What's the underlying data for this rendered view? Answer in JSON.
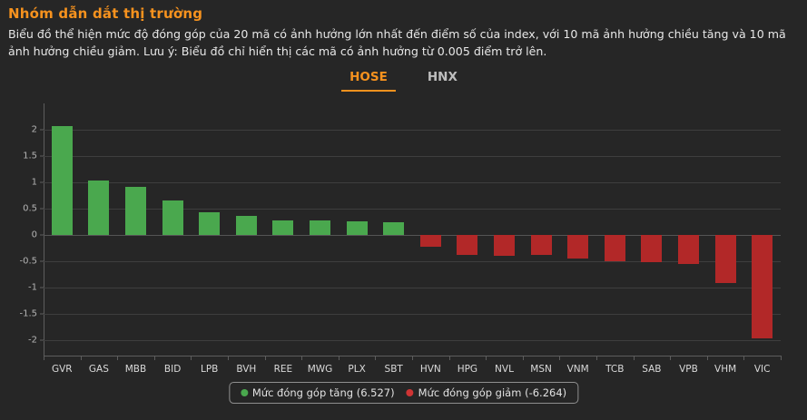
{
  "header": {
    "title": "Nhóm dẫn dắt thị trường",
    "description": "Biểu đồ thể hiện mức độ đóng góp của 20 mã có ảnh hưởng lớn nhất đến điểm số của index, với 10 mã ảnh hưởng chiều tăng và 10 mã ảnh hưởng chiều giảm. Lưu ý: Biểu đồ chỉ hiển thị các mã có ảnh hưởng từ 0.005 điểm trở lên."
  },
  "tabs": [
    {
      "label": "HOSE",
      "active": true
    },
    {
      "label": "HNX",
      "active": false
    }
  ],
  "chart_data": {
    "type": "bar",
    "title": "",
    "xlabel": "",
    "ylabel": "",
    "categories": [
      "GVR",
      "GAS",
      "MBB",
      "BID",
      "LPB",
      "BVH",
      "REE",
      "MWG",
      "PLX",
      "SBT",
      "HVN",
      "HPG",
      "NVL",
      "MSN",
      "VNM",
      "TCB",
      "SAB",
      "VPB",
      "VHM",
      "VIC"
    ],
    "values": [
      2.06,
      1.04,
      0.92,
      0.66,
      0.44,
      0.36,
      0.28,
      0.27,
      0.26,
      0.25,
      -0.23,
      -0.37,
      -0.4,
      -0.38,
      -0.44,
      -0.49,
      -0.52,
      -0.55,
      -0.91,
      -1.96
    ],
    "y_ticks": [
      2,
      1.5,
      1,
      0.5,
      0,
      -0.5,
      -1,
      -1.5,
      -2
    ],
    "ylim": [
      -2.29,
      2.43
    ],
    "grid": true,
    "legend_position": "bottom",
    "positive_color": "#4aa84e",
    "negative_color": "#b22828",
    "legend": [
      {
        "label": "Mức đóng góp tăng (6.527)",
        "color": "#4aa84e"
      },
      {
        "label": "Mức đóng góp giảm (-6.264)",
        "color": "#cf3434"
      }
    ]
  },
  "colors": {
    "background": "#262626",
    "accent": "#f6921e",
    "grid_line": "#3e3e3e",
    "axis_line": "#5d5d5d",
    "tick_label": "#b4b4b4",
    "category_label": "#d9d9d9",
    "text": "#e7e7e7",
    "tab_inactive": "#bdbdbd"
  }
}
